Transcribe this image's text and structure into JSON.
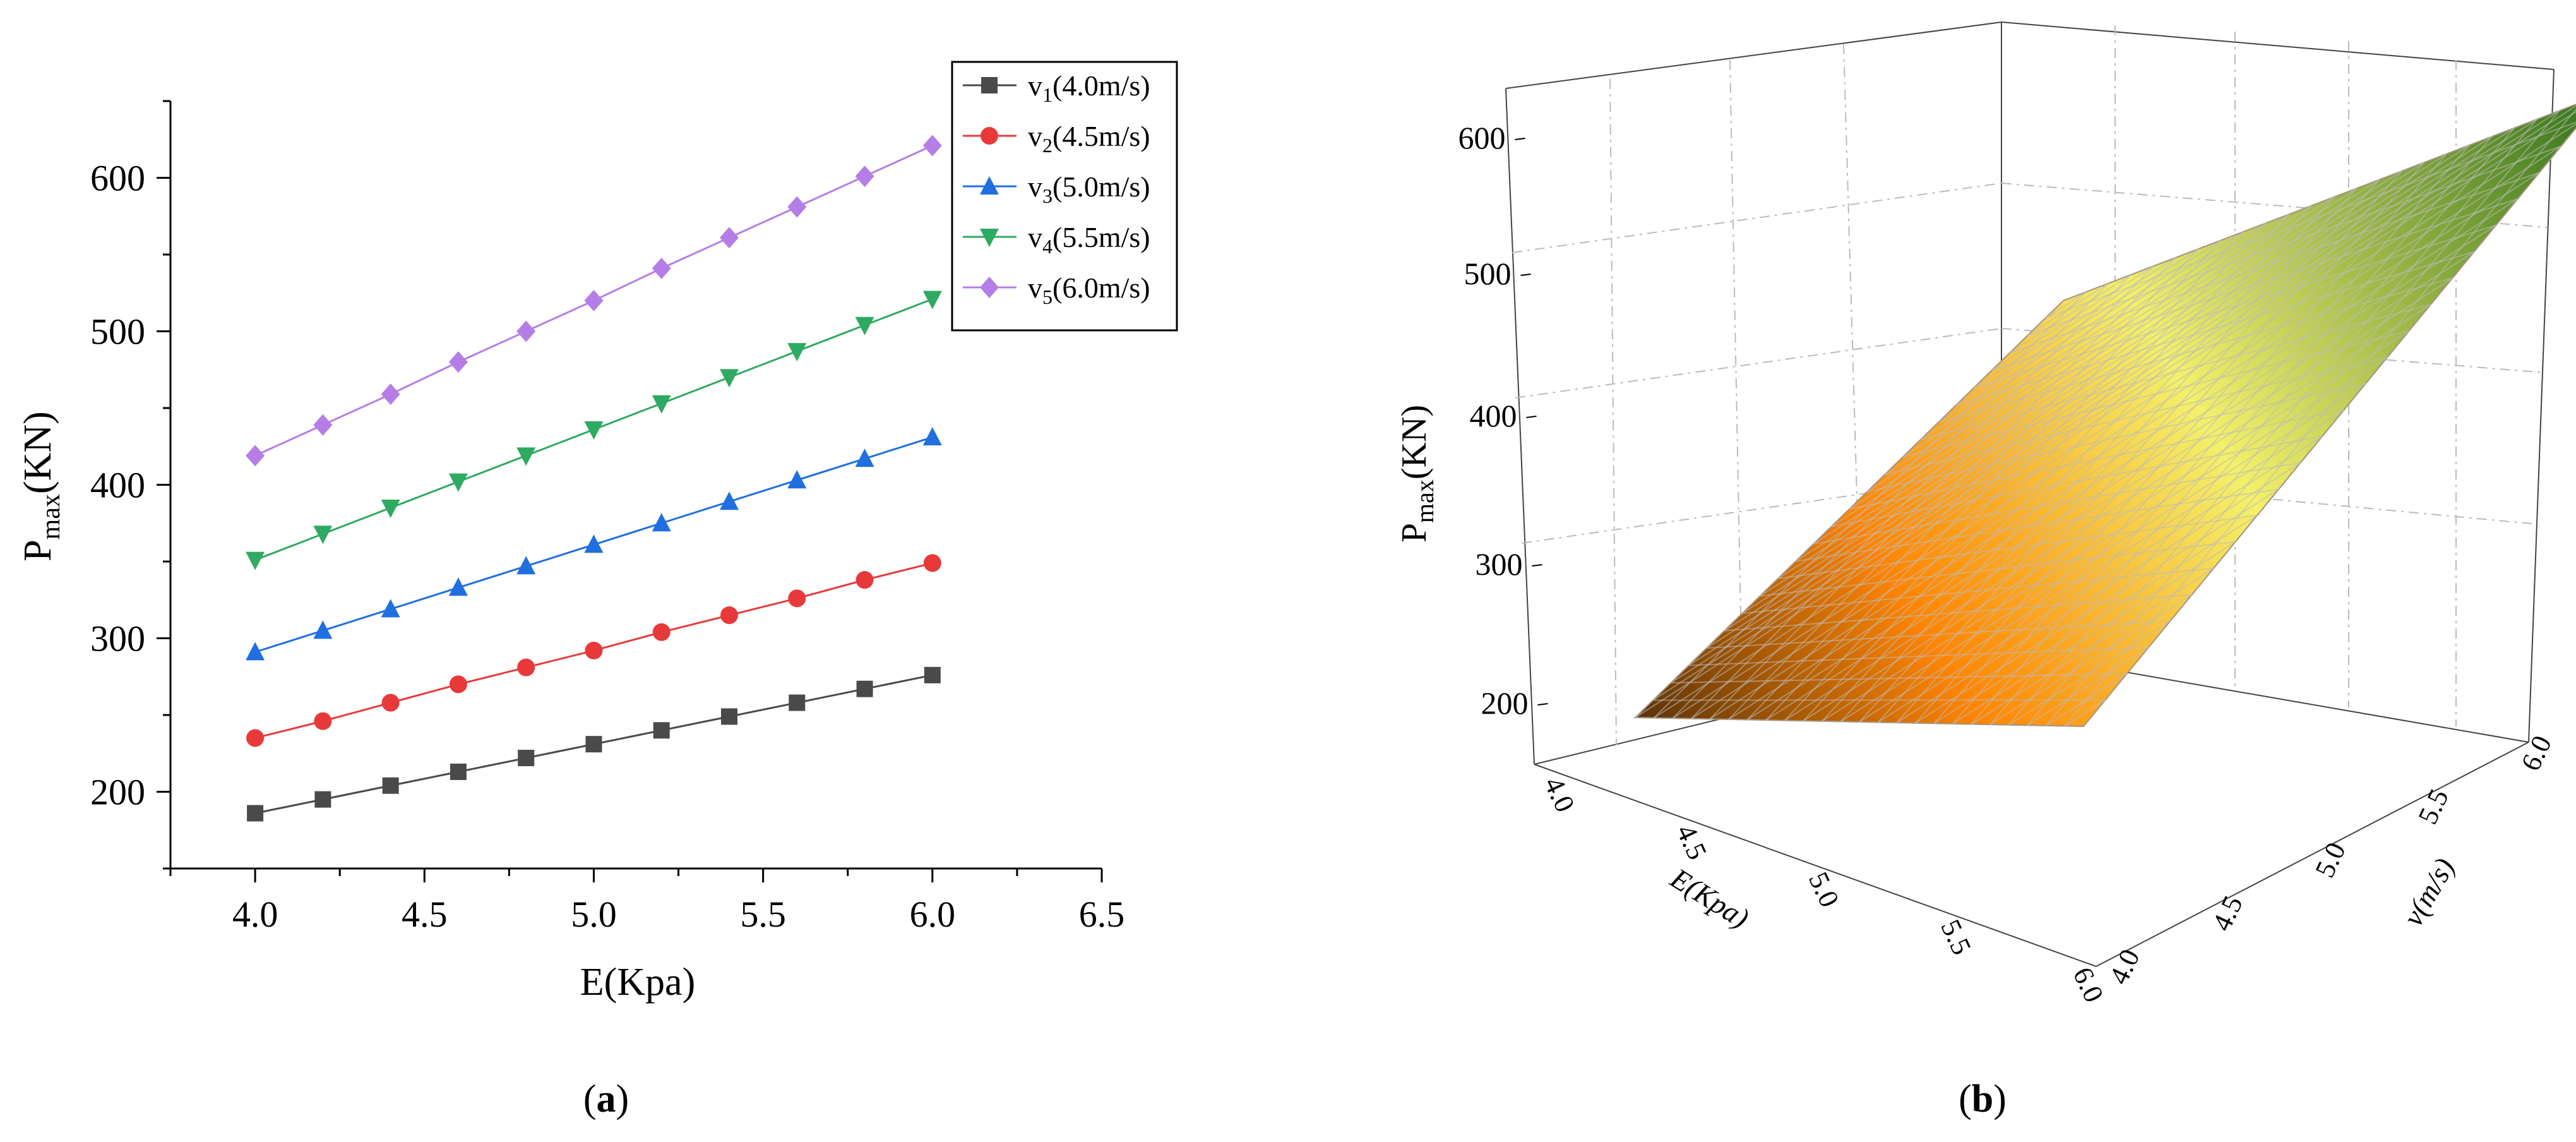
{
  "chart_data": [
    {
      "type": "line",
      "panel_label": "a",
      "xlabel": "E(Kpa)",
      "ylabel": {
        "main": "P",
        "sub": "max",
        "unit": "(KN)"
      },
      "xlim": [
        3.75,
        6.5
      ],
      "ylim": [
        150,
        650
      ],
      "xticks": [
        4.0,
        4.5,
        5.0,
        5.5,
        6.0,
        6.5
      ],
      "xtick_labels": [
        "4.0",
        "4.5",
        "5.0",
        "5.5",
        "6.0",
        "6.5"
      ],
      "yticks": [
        200,
        300,
        400,
        500,
        600
      ],
      "ytick_labels": [
        "200",
        "300",
        "400",
        "500",
        "600"
      ],
      "x": [
        4.0,
        4.2,
        4.4,
        4.6,
        4.8,
        5.0,
        5.2,
        5.4,
        5.6,
        5.8,
        6.0
      ],
      "legend_position": "top-right",
      "series": [
        {
          "name_main": "v",
          "name_sub": "1",
          "name_rest": "(4.0m/s)",
          "marker": "square",
          "color": "#4a4a4a",
          "values": [
            186,
            195,
            204,
            213,
            222,
            231,
            240,
            249,
            258,
            267,
            276
          ]
        },
        {
          "name_main": "v",
          "name_sub": "2",
          "name_rest": "(4.5m/s)",
          "marker": "circle",
          "color": "#e8393a",
          "values": [
            235,
            246,
            258,
            270,
            281,
            292,
            304,
            315,
            326,
            338,
            349
          ]
        },
        {
          "name_main": "v",
          "name_sub": "3",
          "name_rest": "(5.0m/s)",
          "marker": "triangle-up",
          "color": "#1f6fe0",
          "values": [
            291,
            305,
            319,
            333,
            347,
            361,
            375,
            389,
            403,
            417,
            431
          ]
        },
        {
          "name_main": "v",
          "name_sub": "4",
          "name_rest": "(5.5m/s)",
          "marker": "triangle-down",
          "color": "#2eaa62",
          "values": [
            351,
            368,
            385,
            402,
            419,
            436,
            453,
            470,
            487,
            504,
            521
          ]
        },
        {
          "name_main": "v",
          "name_sub": "5",
          "name_rest": "(6.0m/s)",
          "marker": "diamond",
          "color": "#b57ee6",
          "values": [
            419,
            439,
            459,
            480,
            500,
            520,
            541,
            561,
            581,
            601,
            621
          ]
        }
      ]
    },
    {
      "type": "surface3d",
      "panel_label": "b",
      "xlabel": "E(Kpa)",
      "ylabel": "v(m/s)",
      "zlabel": {
        "main": "P",
        "sub": "max",
        "unit": "(KN)"
      },
      "x_range": [
        4.0,
        6.0
      ],
      "y_range": [
        4.0,
        6.0
      ],
      "z_range": [
        150,
        650
      ],
      "xtick_labels": [
        "4.0",
        "4.5",
        "5.0",
        "5.5",
        "6.0"
      ],
      "ytick_labels": [
        "4.0",
        "4.5",
        "5.0",
        "5.5",
        "6.0"
      ],
      "ztick_labels": [
        "200",
        "300",
        "400",
        "500",
        "600"
      ],
      "corner_values": {
        "E4_v4": 186,
        "E6_v4": 276,
        "E4_v6": 419,
        "E6_v6": 621
      },
      "colormap": [
        "#5a3208",
        "#ff8400",
        "#f4f06a",
        "#2b6e17"
      ]
    }
  ]
}
